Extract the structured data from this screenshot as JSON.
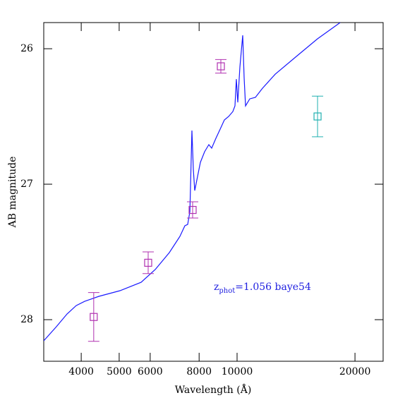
{
  "chart_data": {
    "type": "line",
    "xlabel": "Wavelength (Å)",
    "ylabel": "AB magnitude",
    "xscale": "log",
    "xlim": [
      3209,
      23600
    ],
    "ylim": [
      28.307,
      25.807
    ],
    "xticks": [
      4000,
      5000,
      6000,
      8000,
      10000,
      20000
    ],
    "yticks": [
      26,
      27,
      28
    ],
    "annotation": {
      "text": "z",
      "subscript": "phot",
      "rest": "=1.056 baye54",
      "color": "#2020e0"
    },
    "series": [
      {
        "kind": "line",
        "color": "#1a1aff",
        "x": [
          3209,
          3457,
          3680,
          3884,
          4082,
          4436,
          5022,
          5689,
          6181,
          6714,
          7147,
          7358,
          7481,
          7575,
          7669,
          7732,
          7797,
          7894,
          8060,
          8263,
          8471,
          8613,
          8830,
          9054,
          9281,
          9514,
          9754,
          9876,
          9958,
          10041,
          10167,
          10337,
          10423,
          10510,
          10775,
          11139,
          11610,
          12512,
          14171,
          16049,
          18331
        ],
        "values": [
          28.156,
          28.052,
          27.958,
          27.896,
          27.865,
          27.828,
          27.786,
          27.724,
          27.63,
          27.505,
          27.385,
          27.307,
          27.297,
          27.203,
          26.604,
          26.891,
          27.047,
          26.969,
          26.839,
          26.76,
          26.708,
          26.734,
          26.661,
          26.594,
          26.526,
          26.5,
          26.464,
          26.422,
          26.224,
          26.396,
          26.135,
          25.901,
          26.214,
          26.422,
          26.37,
          26.359,
          26.292,
          26.188,
          26.057,
          25.927,
          25.807
        ]
      },
      {
        "kind": "errorpoints",
        "color": "#b030b0",
        "x": [
          4305,
          5929,
          7700,
          9090
        ],
        "values": [
          27.98,
          27.58,
          27.19,
          26.13
        ],
        "errors": [
          0.18,
          0.08,
          0.06,
          0.05
        ]
      },
      {
        "kind": "errorpoints",
        "color": "#20b0b0",
        "x": [
          16050
        ],
        "values": [
          26.5
        ],
        "errors": [
          0.15
        ]
      }
    ]
  }
}
